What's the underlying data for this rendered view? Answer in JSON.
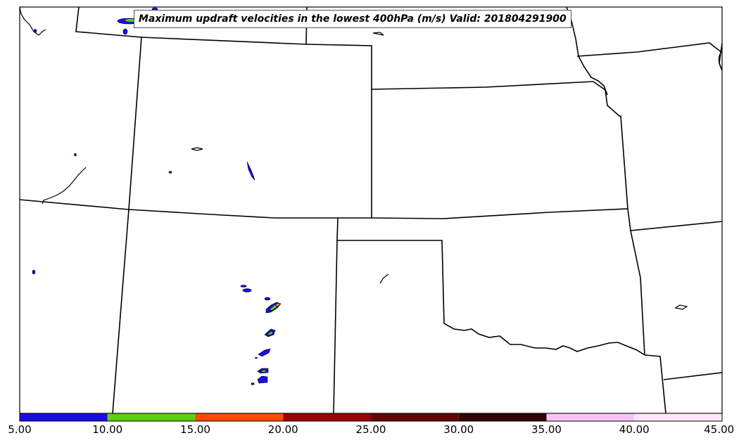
{
  "map": {
    "title": "Maximum updraft velocities in the lowest 400hPa (m/s) Valid: 201804291900"
  },
  "colorbar": {
    "ticks": [
      "5.00",
      "10.00",
      "15.00",
      "20.00",
      "25.00",
      "30.00",
      "35.00",
      "40.00",
      "45.00"
    ],
    "colors": [
      "#1a0ae6",
      "#5ccf0f",
      "#ff4a00",
      "#990000",
      "#660000",
      "#330000",
      "#f7c3f7",
      "#fde6fd"
    ]
  }
}
